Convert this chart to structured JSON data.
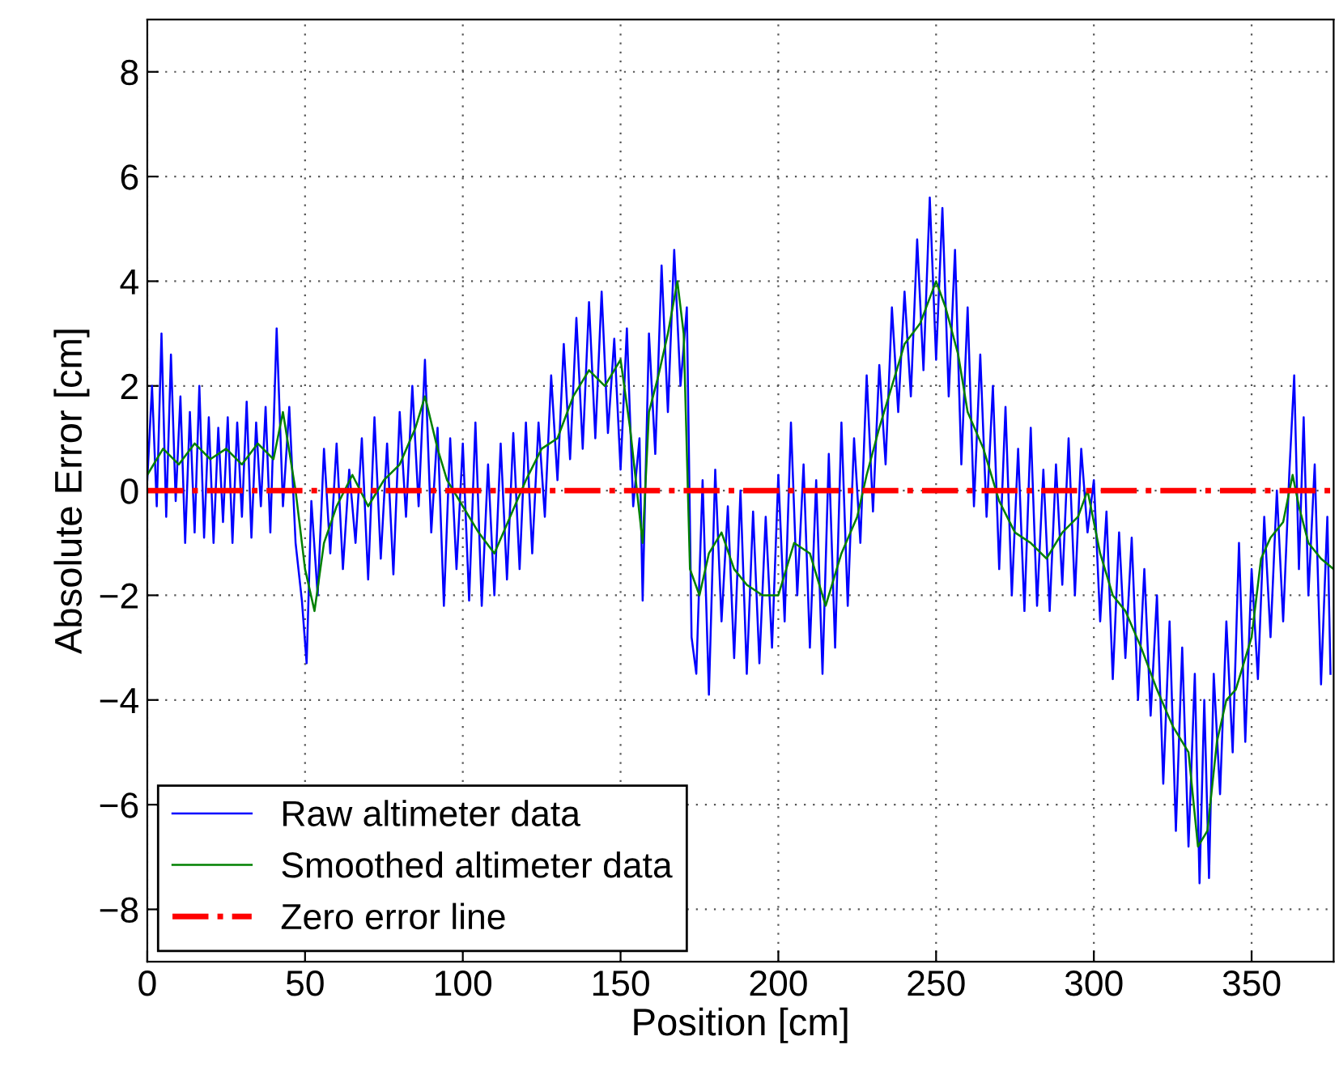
{
  "chart_data": {
    "type": "line",
    "xlabel": "Position [cm]",
    "ylabel": "Absolute Error [cm]",
    "xlim": [
      0,
      376
    ],
    "ylim": [
      -9,
      9
    ],
    "xticks": [
      0,
      50,
      100,
      150,
      200,
      250,
      300,
      350
    ],
    "yticks": [
      -8,
      -6,
      -4,
      -2,
      0,
      2,
      4,
      6,
      8
    ],
    "grid": true,
    "legend": "bottom left",
    "marker": "none",
    "series": [
      {
        "name": "Raw altimeter data",
        "color": "#0000ff",
        "x": [
          0,
          1.5,
          3,
          4.5,
          6,
          7.5,
          9,
          10.5,
          12,
          13.5,
          15,
          16.5,
          18,
          19.5,
          21,
          22.5,
          24,
          25.5,
          27,
          28.5,
          30,
          31.5,
          33,
          34.5,
          36,
          37.5,
          39,
          41,
          43,
          45,
          47,
          49,
          50.5,
          52,
          54,
          56,
          58,
          60,
          62,
          64,
          66,
          68,
          70,
          72,
          74,
          76,
          78,
          80,
          82,
          84,
          86,
          88,
          90,
          92,
          94,
          96,
          98,
          100,
          102,
          104,
          106,
          108,
          110,
          112,
          114,
          116,
          118,
          120,
          122,
          124,
          126,
          128,
          130,
          132,
          134,
          136,
          138,
          140,
          142,
          144,
          146,
          148,
          150,
          152,
          154,
          156,
          157,
          159,
          161,
          163,
          165,
          167,
          169,
          171,
          172.5,
          174,
          176,
          178,
          180,
          182,
          184,
          186,
          188,
          190,
          192,
          194,
          196,
          198,
          200,
          202,
          204,
          206,
          208,
          210,
          212,
          214,
          216,
          218,
          220,
          222,
          224,
          226,
          228,
          230,
          232,
          234,
          236,
          238,
          240,
          242,
          244,
          246,
          248,
          250,
          252,
          254,
          256,
          258,
          260,
          262,
          264,
          266,
          268,
          270,
          272,
          274,
          276,
          278,
          280,
          282,
          284,
          286,
          288,
          290,
          292,
          294,
          296,
          298,
          300,
          302,
          304,
          306,
          308,
          310,
          312,
          314,
          316,
          318,
          320,
          322,
          324,
          326,
          328,
          330,
          332,
          333.5,
          335,
          336.5,
          338,
          340,
          342,
          344,
          346,
          348,
          350,
          352,
          354,
          356,
          358,
          360,
          362,
          363.5,
          365,
          366.5,
          368,
          370,
          372,
          374,
          375
        ],
        "values": [
          0.2,
          2.0,
          -0.3,
          3.0,
          -0.5,
          2.6,
          -0.2,
          1.8,
          -1.0,
          1.5,
          -0.8,
          2.0,
          -0.9,
          1.4,
          -1.0,
          1.2,
          -0.6,
          1.4,
          -1.0,
          1.3,
          -0.5,
          1.7,
          -0.9,
          1.3,
          -0.3,
          1.6,
          -0.8,
          3.1,
          -0.3,
          1.6,
          -1.0,
          -2.1,
          -3.3,
          -0.2,
          -2.0,
          0.8,
          -1.2,
          0.9,
          -1.5,
          0.4,
          -1.0,
          1.0,
          -1.7,
          1.4,
          -1.3,
          0.9,
          -1.6,
          1.5,
          -0.5,
          2.0,
          -0.3,
          2.5,
          -0.8,
          1.2,
          -2.2,
          1.0,
          -1.5,
          0.9,
          -2.1,
          1.3,
          -2.2,
          0.5,
          -2.0,
          0.9,
          -1.7,
          1.1,
          -1.5,
          1.3,
          -1.2,
          1.3,
          -0.5,
          2.2,
          0.2,
          2.8,
          0.6,
          3.3,
          0.8,
          3.6,
          1.0,
          3.8,
          1.1,
          2.9,
          0.4,
          3.1,
          -0.3,
          1.0,
          -2.1,
          3.0,
          0.7,
          4.3,
          1.5,
          4.6,
          2.0,
          3.5,
          -2.8,
          -3.5,
          0.2,
          -3.9,
          0.4,
          -2.5,
          -0.3,
          -3.2,
          0.0,
          -3.5,
          -0.4,
          -3.3,
          -0.5,
          -3.0,
          0.3,
          -2.5,
          1.3,
          -2.0,
          0.5,
          -3.0,
          0.2,
          -3.5,
          0.7,
          -3.0,
          1.3,
          -2.2,
          1.0,
          -1.0,
          2.2,
          -0.4,
          2.4,
          0.5,
          3.5,
          1.5,
          3.8,
          1.8,
          4.8,
          2.3,
          5.6,
          2.5,
          5.4,
          1.8,
          4.6,
          0.5,
          3.5,
          -0.3,
          2.6,
          -0.5,
          2.0,
          -1.5,
          1.6,
          -2.0,
          0.8,
          -2.3,
          1.2,
          -2.2,
          0.4,
          -2.3,
          0.5,
          -1.8,
          1.0,
          -2.0,
          0.8,
          -0.8,
          0.2,
          -2.5,
          -0.4,
          -3.6,
          -0.8,
          -3.2,
          -0.9,
          -4.0,
          -1.5,
          -4.3,
          -2.0,
          -5.6,
          -2.5,
          -6.5,
          -3.0,
          -6.8,
          -3.5,
          -7.5,
          -4.0,
          -7.4,
          -3.5,
          -5.8,
          -2.5,
          -5.0,
          -1.0,
          -4.8,
          -1.5,
          -3.6,
          -0.5,
          -2.8,
          0.0,
          -2.5,
          0.4,
          2.2,
          -1.5,
          1.4,
          -2.0,
          0.5,
          -3.7,
          -0.5,
          -3.5
        ]
      },
      {
        "name": "Smoothed altimeter data",
        "color": "#008000",
        "x": [
          0,
          5,
          10,
          15,
          20,
          25,
          30,
          35,
          40,
          43,
          47,
          50,
          53,
          56,
          60,
          65,
          70,
          75,
          80,
          85,
          88,
          92,
          95,
          100,
          105,
          110,
          115,
          120,
          125,
          130,
          135,
          140,
          145,
          150,
          153,
          157,
          159,
          162,
          165,
          168,
          170,
          172,
          175,
          178,
          182,
          186,
          190,
          195,
          200,
          205,
          210,
          215,
          220,
          225,
          228,
          232,
          236,
          240,
          245,
          250,
          253,
          257,
          260,
          265,
          270,
          275,
          280,
          285,
          290,
          295,
          298,
          302,
          306,
          310,
          315,
          320,
          325,
          330,
          333,
          336,
          339,
          342,
          345,
          350,
          353,
          356,
          360,
          363,
          365,
          368,
          372,
          376
        ],
        "values": [
          0.3,
          0.8,
          0.5,
          0.9,
          0.6,
          0.8,
          0.5,
          0.9,
          0.6,
          1.5,
          0.0,
          -1.5,
          -2.3,
          -1.0,
          -0.3,
          0.3,
          -0.3,
          0.2,
          0.5,
          1.2,
          1.8,
          0.8,
          0.2,
          -0.3,
          -0.8,
          -1.2,
          -0.5,
          0.2,
          0.8,
          1.0,
          1.8,
          2.3,
          2.0,
          2.5,
          1.2,
          -1.0,
          1.5,
          2.2,
          3.0,
          4.0,
          3.0,
          -1.5,
          -2.0,
          -1.2,
          -0.8,
          -1.5,
          -1.8,
          -2.0,
          -2.0,
          -1.0,
          -1.2,
          -2.2,
          -1.2,
          -0.5,
          0.3,
          1.2,
          2.0,
          2.8,
          3.2,
          4.0,
          3.5,
          2.6,
          1.5,
          0.8,
          -0.2,
          -0.8,
          -1.0,
          -1.3,
          -0.8,
          -0.5,
          0.0,
          -1.2,
          -2.0,
          -2.3,
          -3.0,
          -3.8,
          -4.5,
          -5.0,
          -6.8,
          -6.5,
          -4.8,
          -4.0,
          -3.8,
          -2.8,
          -1.3,
          -0.9,
          -0.6,
          0.3,
          -0.3,
          -1.0,
          -1.3,
          -1.5
        ]
      }
    ],
    "ref_lines": [
      {
        "axis": "y",
        "value": 0,
        "label": "Zero error line",
        "color": "#ff0000",
        "line_style": "dashdot"
      }
    ]
  }
}
